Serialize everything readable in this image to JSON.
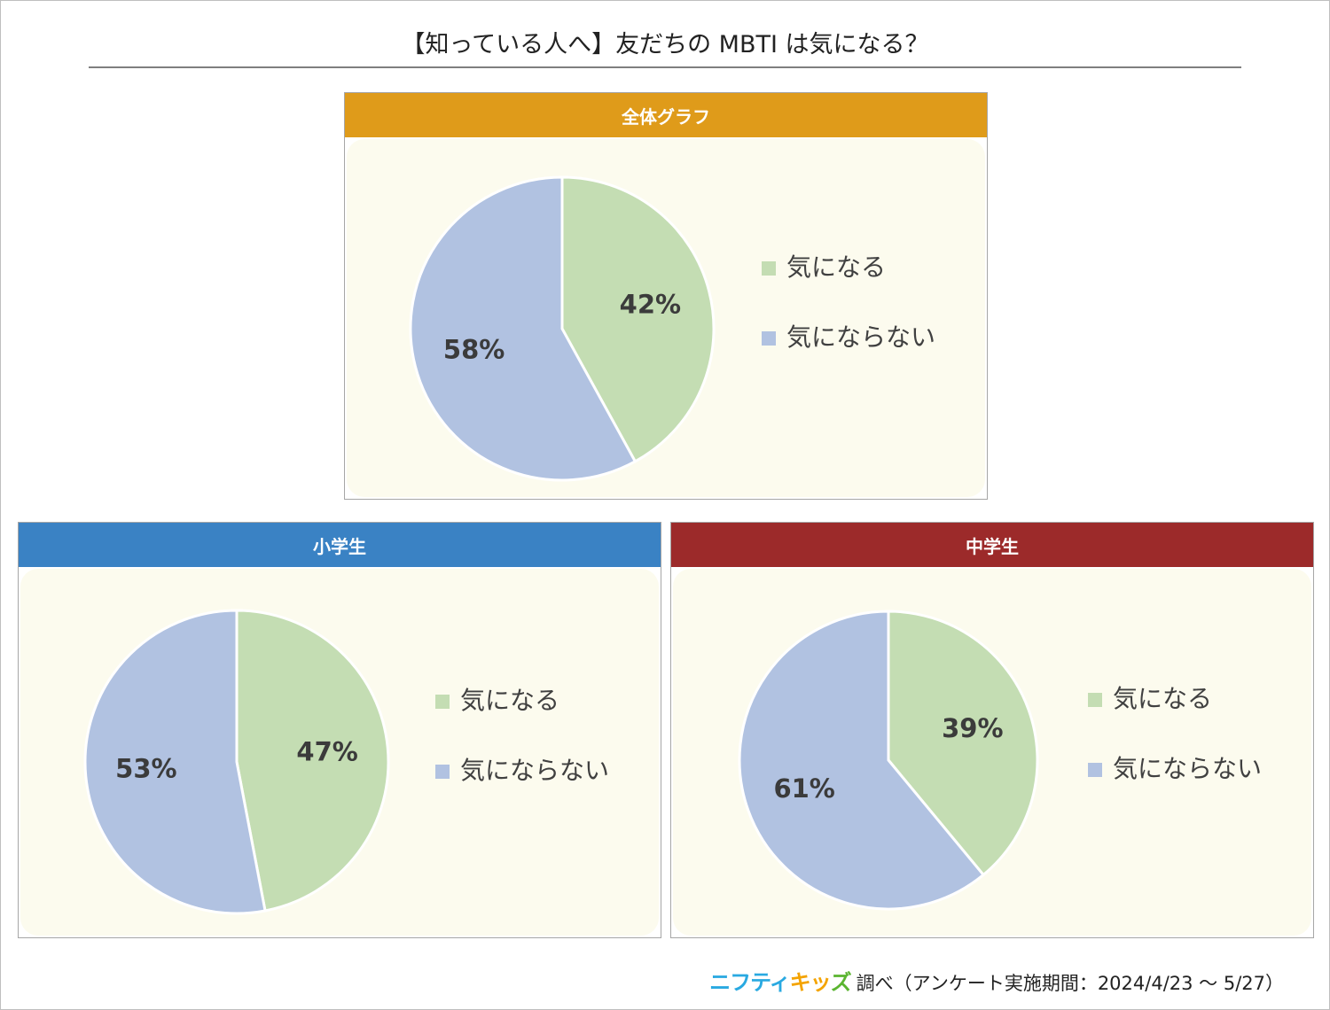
{
  "title": "【知っている人へ】友だちの MBTI は気になる？",
  "legend_labels": [
    "気になる",
    "気にならない"
  ],
  "colors": {
    "concerned": "#c4ddb3",
    "not_concerned": "#b1c2e1",
    "background": "#fcfbee"
  },
  "chart_data": [
    {
      "type": "pie",
      "title": "全体グラフ",
      "header_color": "#df9b1a",
      "categories": [
        "気になる",
        "気にならない"
      ],
      "values": [
        42,
        58
      ],
      "labels": [
        "42%",
        "58%"
      ]
    },
    {
      "type": "pie",
      "title": "小学生",
      "header_color": "#3a82c4",
      "categories": [
        "気になる",
        "気にならない"
      ],
      "values": [
        47,
        53
      ],
      "labels": [
        "47%",
        "53%"
      ]
    },
    {
      "type": "pie",
      "title": "中学生",
      "header_color": "#9c2a2a",
      "categories": [
        "気になる",
        "気にならない"
      ],
      "values": [
        39,
        61
      ],
      "labels": [
        "39%",
        "61%"
      ]
    }
  ],
  "footer": {
    "logo_part1": "ニフティ",
    "logo_part2": "キッ",
    "logo_part3": "ズ",
    "text": "調べ（アンケート実施期間：2024/4/23 〜 5/27）"
  }
}
